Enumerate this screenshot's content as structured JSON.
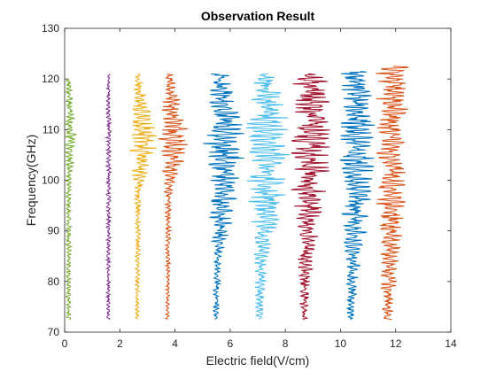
{
  "chart_data": {
    "type": "line",
    "title": "Observation Result",
    "xlabel": "Electric field(V/cm)",
    "ylabel": "Frequency(GHz)",
    "xlim": [
      0,
      14
    ],
    "ylim": [
      70,
      130
    ],
    "xticks": [
      "0",
      "2",
      "4",
      "6",
      "8",
      "10",
      "12",
      "14"
    ],
    "yticks": [
      "70",
      "80",
      "90",
      "100",
      "110",
      "120",
      "130"
    ],
    "grid": false,
    "box": true,
    "y_range_traces": [
      72.5,
      120.5
    ],
    "series": [
      {
        "color": "#77ac30",
        "baseline": 0.1,
        "amp_scale": [
          0.15,
          0.15,
          0.15,
          0.35,
          0.15
        ],
        "y_max": 120.0
      },
      {
        "color": "#7e2f8e",
        "baseline": 1.55,
        "amp_scale": [
          0.1,
          0.12,
          0.15,
          0.15,
          0.12
        ],
        "y_max": 121.0
      },
      {
        "color": "#edb120",
        "baseline": 2.6,
        "amp_scale": [
          0.1,
          0.15,
          0.2,
          0.9,
          0.15
        ],
        "y_max": 121.0
      },
      {
        "color": "#d95319",
        "baseline": 3.7,
        "amp_scale": [
          0.1,
          0.15,
          0.2,
          1.0,
          0.25
        ],
        "y_max": 121.0
      },
      {
        "color": "#0072bd",
        "baseline": 5.45,
        "amp_scale": [
          0.15,
          0.3,
          1.0,
          1.3,
          0.6
        ],
        "y_max": 121.0
      },
      {
        "color": "#4dbeee",
        "baseline": 7.0,
        "amp_scale": [
          0.2,
          0.4,
          1.2,
          1.3,
          0.9
        ],
        "y_max": 121.0
      },
      {
        "color": "#a2142f",
        "baseline": 8.6,
        "amp_scale": [
          0.2,
          0.5,
          1.1,
          1.2,
          1.0
        ],
        "y_max": 121.0
      },
      {
        "color": "#0072bd",
        "baseline": 10.3,
        "amp_scale": [
          0.2,
          0.5,
          1.0,
          1.0,
          1.0
        ],
        "y_max": 121.5
      },
      {
        "color": "#d95319",
        "baseline": 11.6,
        "amp_scale": [
          0.3,
          0.6,
          0.9,
          0.9,
          1.0
        ],
        "y_max": 122.5
      }
    ]
  }
}
